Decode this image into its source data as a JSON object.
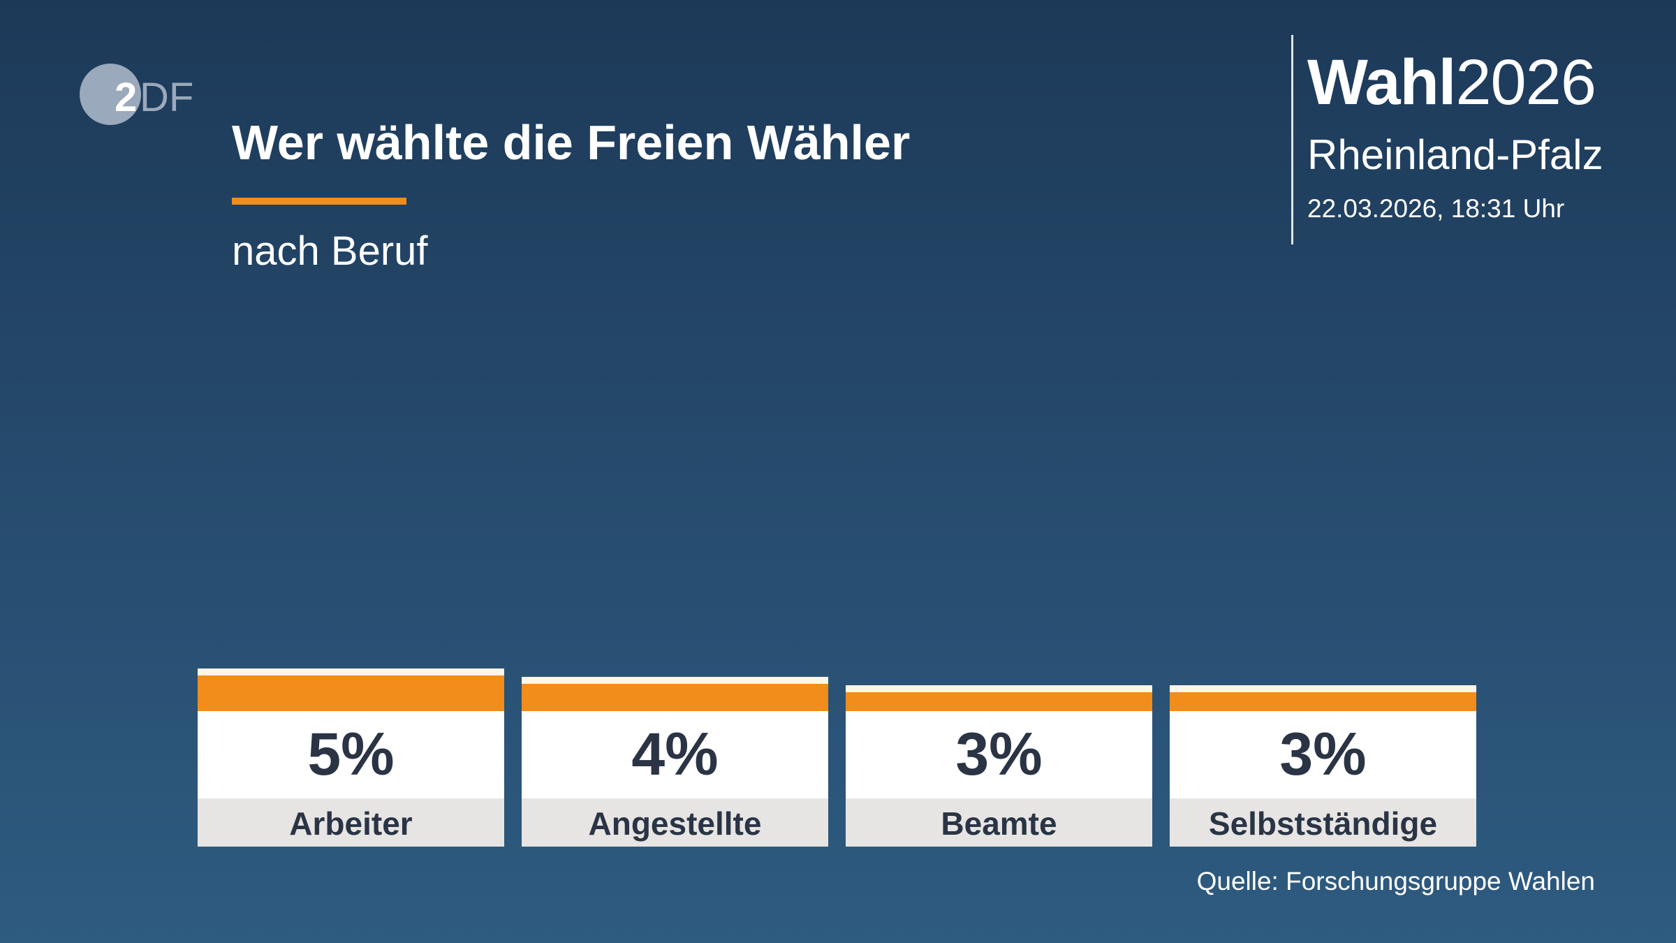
{
  "logo": {
    "text": "ZDF"
  },
  "header": {
    "title": "Wer wählte die Freien Wähler",
    "subtitle": "nach Beruf"
  },
  "brand": {
    "word": "Wahl",
    "year": "2026",
    "region": "Rheinland-Pfalz",
    "datetime": "22.03.2026, 18:31 Uhr"
  },
  "colors": {
    "bar": "#f28c1a",
    "background": "#25496b",
    "label_bg": "#e6e5e3"
  },
  "chart_data": {
    "type": "bar",
    "title": "Wer wählte die Freien Wähler",
    "subtitle": "nach Beruf",
    "categories": [
      "Arbeiter",
      "Angestellte",
      "Beamte",
      "Selbstständige"
    ],
    "values": [
      5,
      4,
      3,
      3
    ],
    "value_labels": [
      "5%",
      "4%",
      "3%",
      "3%"
    ],
    "unit": "%"
  },
  "footer": {
    "source": "Quelle: Forschungsgruppe Wahlen"
  }
}
